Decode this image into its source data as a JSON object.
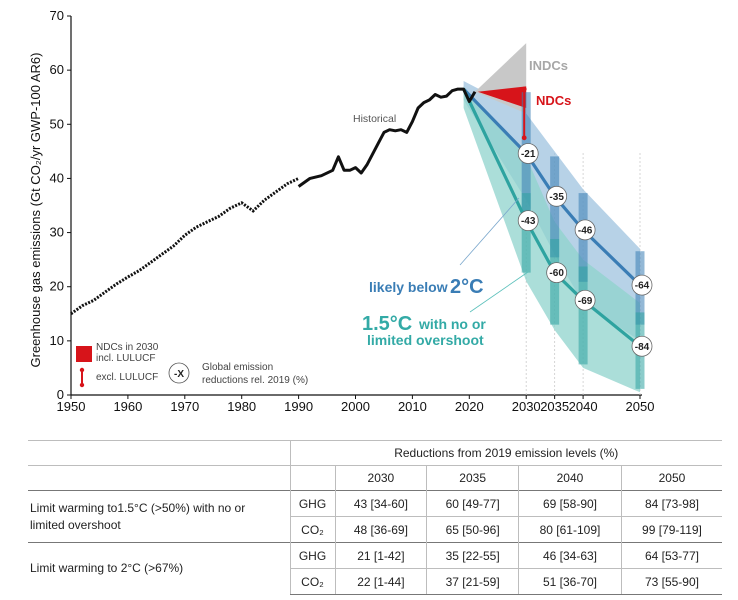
{
  "chart_data": {
    "type": "line",
    "title": "",
    "ylabel": "Greenhouse gas emissions (Gt CO₂/yr GWP-100 AR6)",
    "xlabel": "",
    "xlim": [
      1950,
      2050
    ],
    "ylim": [
      0,
      70
    ],
    "xticks": [
      "1950",
      "1960",
      "1970",
      "1980",
      "1990",
      "2000",
      "2010",
      "2020",
      "2030",
      "2035",
      "2040",
      "2050"
    ],
    "yticks": [
      "0",
      "10",
      "20",
      "30",
      "40",
      "50",
      "60",
      "70"
    ],
    "historical_label": "Historical",
    "historical_pre1990": {
      "x": [
        1950,
        1952,
        1954,
        1956,
        1958,
        1960,
        1962,
        1964,
        1966,
        1968,
        1970,
        1972,
        1974,
        1976,
        1978,
        1980,
        1982,
        1984,
        1986,
        1988,
        1990
      ],
      "y": [
        15,
        16.5,
        17.5,
        19,
        20.5,
        21.8,
        23,
        24.5,
        26,
        27.5,
        29.5,
        31,
        32,
        33,
        34.5,
        35.5,
        34,
        36,
        37.5,
        39,
        40
      ]
    },
    "historical_post1990": {
      "x": [
        1990,
        1992,
        1994,
        1996,
        1997,
        1998,
        1999,
        2000,
        2001,
        2002,
        2003,
        2004,
        2005,
        2006,
        2007,
        2008,
        2009,
        2010,
        2011,
        2012,
        2013,
        2014,
        2015,
        2016,
        2017,
        2018,
        2019,
        2020,
        2021
      ],
      "y": [
        38.5,
        40,
        40.5,
        41.5,
        44,
        41.5,
        41.5,
        42,
        41,
        42.5,
        44.5,
        46.5,
        48.5,
        49,
        48.8,
        49,
        48.5,
        50.5,
        53,
        54,
        54.5,
        55.5,
        55,
        55.2,
        56.2,
        56.5,
        56.5,
        54.2,
        56
      ]
    },
    "pathway_2C": {
      "label": "likely below",
      "label_deg": "2°C",
      "median": {
        "x": [
          2019,
          2030,
          2035,
          2040,
          2050
        ],
        "y": [
          56.5,
          44.6,
          36.7,
          30.5,
          20.3
        ]
      },
      "range": {
        "x": [
          2019,
          2030,
          2035,
          2040,
          2050
        ],
        "upper": [
          58,
          52,
          45,
          38,
          27
        ],
        "lower": [
          54.5,
          36,
          26,
          17,
          10
        ]
      },
      "bars": [
        {
          "year": 2030,
          "low": 1,
          "high": 42,
          "label": "-21"
        },
        {
          "year": 2035,
          "low": 22,
          "high": 55,
          "label": "-35"
        },
        {
          "year": 2040,
          "low": 34,
          "high": 63,
          "label": "-46"
        },
        {
          "year": 2050,
          "low": 53,
          "high": 77,
          "label": "-64"
        }
      ]
    },
    "pathway_15C": {
      "label_deg": "1.5°C",
      "label_rest": "with no or",
      "label_line2": "limited overshoot",
      "median": {
        "x": [
          2019,
          2030,
          2035,
          2040,
          2050
        ],
        "y": [
          56.5,
          32.2,
          22.6,
          17.5,
          9
        ]
      },
      "range": {
        "x": [
          2019,
          2030,
          2035,
          2040,
          2050
        ],
        "upper": [
          57,
          44,
          32,
          25,
          17
        ],
        "lower": [
          53,
          21,
          12,
          5,
          0.5
        ]
      },
      "bars": [
        {
          "year": 2030,
          "low": 34,
          "high": 60,
          "label": "-43"
        },
        {
          "year": 2035,
          "low": 49,
          "high": 77,
          "label": "-60"
        },
        {
          "year": 2040,
          "low": 58,
          "high": 90,
          "label": "-69"
        },
        {
          "year": 2050,
          "low": 73,
          "high": 98,
          "label": "-84"
        }
      ]
    },
    "indcs": {
      "label": "INDCs",
      "x": 2030,
      "low": 52,
      "high": 65
    },
    "ndcs": {
      "label": "NDCs",
      "x": 2030,
      "low": 53,
      "high": 57,
      "excl_low": 47.5,
      "excl_high": 56.5
    },
    "legend": {
      "ndc_box_line1": "NDCs in 2030",
      "ndc_box_line2": "incl. LULUCF",
      "ndc_bar": "excl. LULUCF",
      "bubble_sym": "-X",
      "bubble_line1": "Global emission",
      "bubble_line2": "reductions rel. 2019 (%)"
    },
    "colors": {
      "historical": "#111111",
      "c2_line": "#3a7db5",
      "c2_fill": "#9fc3df",
      "c15_line": "#2ea3a0",
      "c15_fill": "#8fd3cc",
      "indc": "#c8c8c8",
      "ndc": "#d7141a"
    }
  },
  "table": {
    "header": "Reductions from 2019 emission levels (%)",
    "years": [
      "2030",
      "2035",
      "2040",
      "2050"
    ],
    "rows": [
      {
        "desc_line1": "Limit warming to1.5°C (>50%) with no or",
        "desc_line2": "limited overshoot",
        "items": [
          {
            "gas": "GHG",
            "vals": [
              "43 [34-60]",
              "60 [49-77]",
              "69 [58-90]",
              "84 [73-98]"
            ]
          },
          {
            "gas": "CO₂",
            "vals": [
              "48 [36-69]",
              "65 [50-96]",
              "80 [61-109]",
              "99 [79-119]"
            ]
          }
        ]
      },
      {
        "desc_line1": "Limit warming to 2°C (>67%)",
        "desc_line2": "",
        "items": [
          {
            "gas": "GHG",
            "vals": [
              "21 [1-42]",
              "35 [22-55]",
              "46 [34-63]",
              "64 [53-77]"
            ]
          },
          {
            "gas": "CO₂",
            "vals": [
              "22 [1-44]",
              "37 [21-59]",
              "51 [36-70]",
              "73 [55-90]"
            ]
          }
        ]
      }
    ]
  }
}
